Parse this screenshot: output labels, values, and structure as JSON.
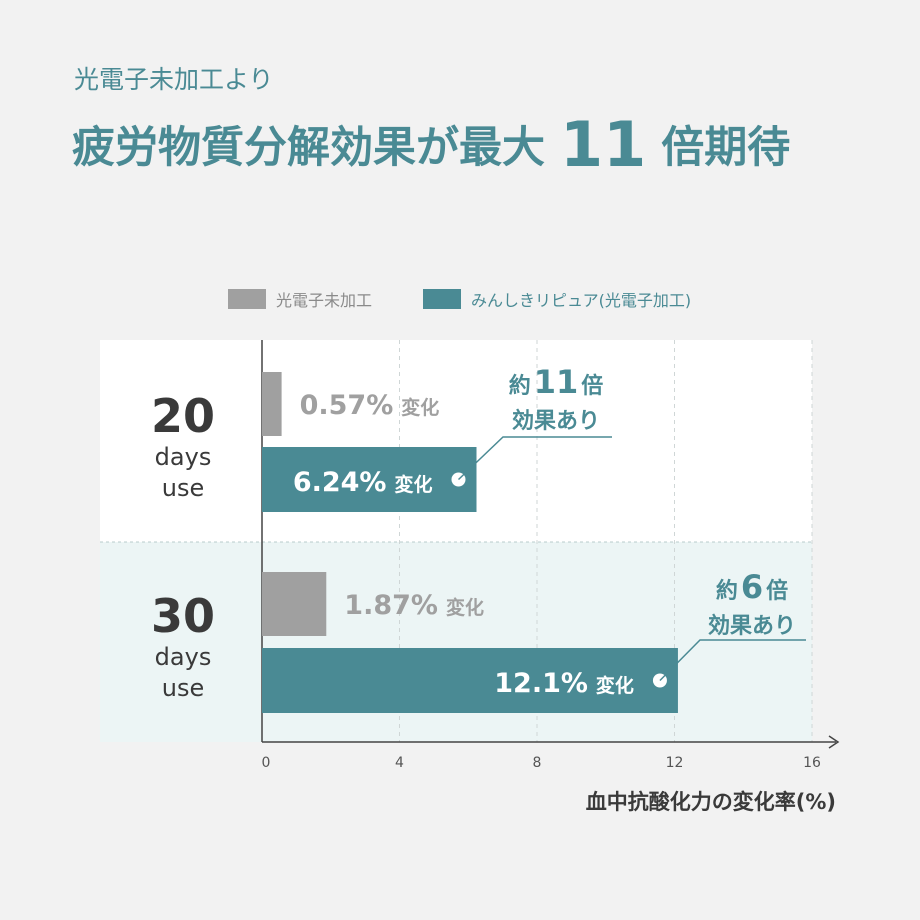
{
  "header": {
    "subtitle": "光電子未加工より",
    "title_prefix": "疲労物質分解効果が最大",
    "title_number": "11",
    "title_suffix": "倍期待"
  },
  "colors": {
    "accent": "#4a8a94",
    "bar_teal": "#4a8a94",
    "bar_gray": "#a0a0a0",
    "text_dark": "#3a3a3a",
    "band_white": "#ffffff",
    "band_tint": "#ecf5f5",
    "background": "#f2f2f2"
  },
  "chart_data": {
    "type": "bar",
    "orientation": "horizontal",
    "xlabel": "血中抗酸化力の変化率(%)",
    "xlim": [
      0,
      16
    ],
    "xticks": [
      "0",
      "4",
      "8",
      "12",
      "16"
    ],
    "legend_position": "top",
    "categories": [
      {
        "number": "20",
        "unit": "days\nuse"
      },
      {
        "number": "30",
        "unit": "days\nuse"
      }
    ],
    "series": [
      {
        "name": "光電子未加工",
        "color": "#a0a0a0",
        "values": [
          0.57,
          1.87
        ],
        "labels": [
          "0.57%",
          "1.87%"
        ]
      },
      {
        "name": "みんしきリピュア(光電子加工)",
        "color": "#4a8a94",
        "values": [
          6.24,
          12.1
        ],
        "labels": [
          "6.24%",
          "12.1%"
        ]
      }
    ],
    "value_suffix": "変化",
    "annotations": [
      {
        "prefix": "約",
        "number": "11",
        "suffix": "倍",
        "line2": "効果あり"
      },
      {
        "prefix": "約",
        "number": "6",
        "suffix": "倍",
        "line2": "効果あり"
      }
    ]
  }
}
